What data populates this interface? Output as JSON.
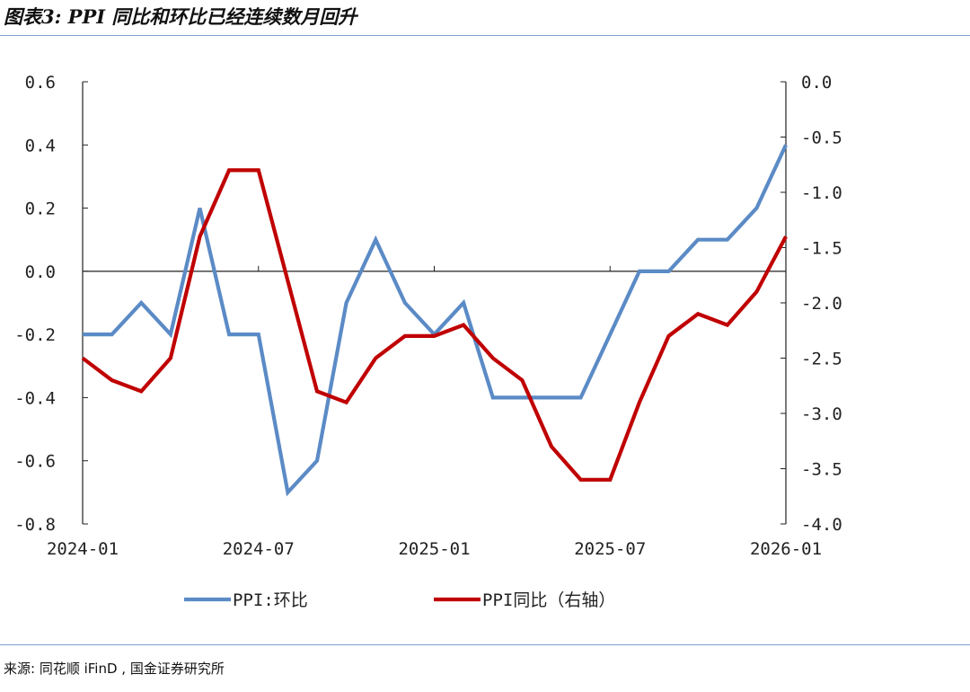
{
  "header": {
    "title": "图表3: PPI 同比和环比已经连续数月回升"
  },
  "footer": {
    "source": "来源: 同花顺 iFinD , 国金证券研究所"
  },
  "colors": {
    "series_mom": "#5B8BC6",
    "series_yoy": "#C00000",
    "rule": "#7f9fc8"
  },
  "chart_data": {
    "type": "line",
    "title": "",
    "xlabel": "",
    "ylabel": "",
    "x": [
      "2024-01",
      "2024-02",
      "2024-03",
      "2024-04",
      "2024-05",
      "2024-06",
      "2024-07",
      "2024-08",
      "2024-09",
      "2024-10",
      "2024-11",
      "2024-12",
      "2025-01",
      "2025-02",
      "2025-03",
      "2025-04",
      "2025-05",
      "2025-06",
      "2025-07",
      "2025-08",
      "2025-09",
      "2025-10",
      "2025-11",
      "2025-12",
      "2026-01"
    ],
    "x_tick_labels": [
      "2024-01",
      "2024-07",
      "2025-01",
      "2025-07",
      "2026-01"
    ],
    "y_left": {
      "range": [
        -0.8,
        0.6
      ],
      "ticks": [
        "0.6",
        "0.4",
        "0.2",
        "0.0",
        "-0.2",
        "-0.4",
        "-0.6",
        "-0.8"
      ]
    },
    "y_right": {
      "range": [
        -4.0,
        0.0
      ],
      "ticks": [
        "0.0",
        "-0.5",
        "-1.0",
        "-1.5",
        "-2.0",
        "-2.5",
        "-3.0",
        "-3.5",
        "-4.0"
      ]
    },
    "legend_position": "bottom",
    "series": [
      {
        "name": "PPI:环比",
        "axis": "left",
        "values": [
          -0.2,
          -0.2,
          -0.1,
          -0.2,
          0.2,
          -0.2,
          -0.2,
          -0.7,
          -0.6,
          -0.1,
          0.1,
          -0.1,
          -0.2,
          -0.1,
          -0.4,
          -0.4,
          -0.4,
          -0.4,
          -0.2,
          0.0,
          0.0,
          0.1,
          0.1,
          0.2,
          0.4
        ]
      },
      {
        "name": "PPI同比（右轴）",
        "axis": "right",
        "values": [
          -2.5,
          -2.7,
          -2.8,
          -2.5,
          -1.4,
          -0.8,
          -0.8,
          -1.8,
          -2.8,
          -2.9,
          -2.5,
          -2.3,
          -2.3,
          -2.2,
          -2.5,
          -2.7,
          -3.3,
          -3.6,
          -3.6,
          -2.9,
          -2.3,
          -2.1,
          -2.2,
          -1.9,
          -1.4
        ]
      }
    ]
  }
}
